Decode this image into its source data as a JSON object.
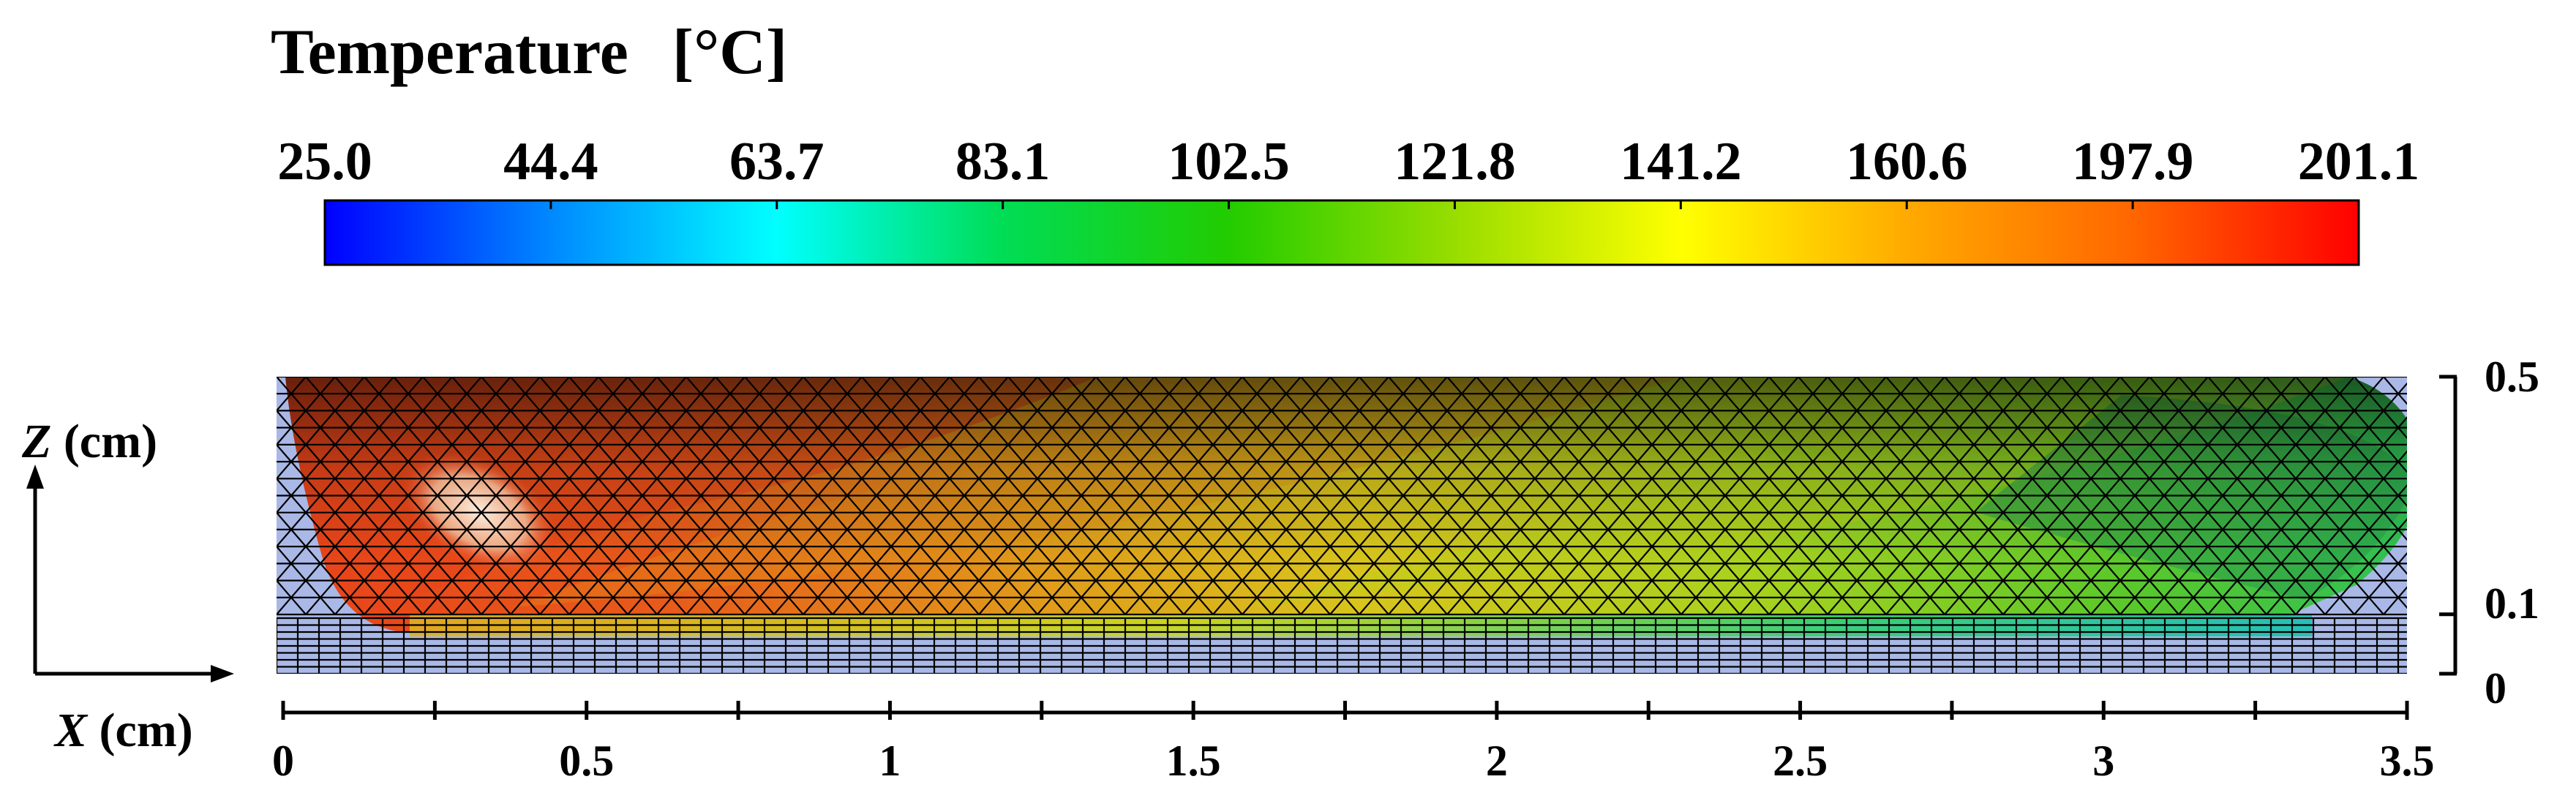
{
  "colorbar": {
    "title": "Temperature",
    "unit": "[°C]",
    "tick_labels": [
      "25.0",
      "44.4",
      "63.7",
      "83.1",
      "102.5",
      "121.8",
      "141.2",
      "160.6",
      "197.9",
      "201.1"
    ],
    "colors": [
      "#0000ff",
      "#0088ff",
      "#00ffff",
      "#00dd55",
      "#22cc00",
      "#99dd00",
      "#ffff00",
      "#ffaa00",
      "#ff6600",
      "#ff0000"
    ]
  },
  "axes": {
    "z_label_var": "Z",
    "z_label_unit": " (cm)",
    "x_label_var": "X",
    "x_label_unit": " (cm)",
    "x_ticks": [
      "0",
      "0.5",
      "1",
      "1.5",
      "2",
      "2.5",
      "3",
      "3.5"
    ],
    "x_ticks_values": [
      0,
      0.5,
      1,
      1.5,
      2,
      2.5,
      3,
      3.5
    ],
    "x_range": [
      0,
      3.5
    ],
    "z_ticks": [
      "0",
      "0.1",
      "0.5"
    ],
    "z_ticks_values": [
      0,
      0.1,
      0.5
    ],
    "z_range": [
      0,
      0.5
    ]
  },
  "colors": {
    "background_mesh": "#a9b8e6",
    "mesh_line": "#000000",
    "hot": "#e8461a",
    "warm": "#e0a21a",
    "mid": "#c8d21a",
    "cool": "#4cc832",
    "cold": "#1ec896"
  }
}
